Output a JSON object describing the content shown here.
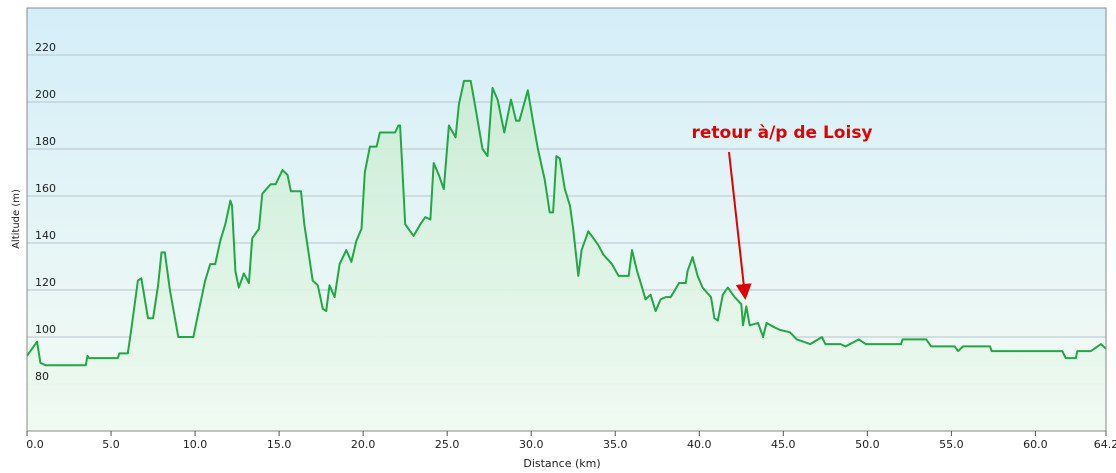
{
  "chart_data": {
    "type": "area",
    "x_label": "Distance  (km)",
    "y_label": "Altitude (m)",
    "annotation": "retour à/p de Loisy",
    "color": "#22a745",
    "grid": true,
    "xlim": [
      0,
      64.2
    ],
    "ylim": [
      60,
      240
    ],
    "xticks": [
      {
        "value": 0,
        "label": "0.0"
      },
      {
        "value": 5,
        "label": "5.0"
      },
      {
        "value": 10,
        "label": "10.0"
      },
      {
        "value": 15,
        "label": "15.0"
      },
      {
        "value": 20,
        "label": "20.0"
      },
      {
        "value": 25,
        "label": "25.0"
      },
      {
        "value": 30,
        "label": "30.0"
      },
      {
        "value": 35,
        "label": "35.0"
      },
      {
        "value": 40,
        "label": "40.0"
      },
      {
        "value": 45,
        "label": "45.0"
      },
      {
        "value": 50,
        "label": "50.0"
      },
      {
        "value": 55,
        "label": "55.0"
      },
      {
        "value": 60,
        "label": "60.0"
      },
      64.2
    ],
    "yticks": [
      80,
      100,
      120,
      140,
      160,
      180,
      200,
      220
    ],
    "x": [
      0,
      0.6,
      0.8,
      1.1,
      3.5,
      3.6,
      3.7,
      5.4,
      5.5,
      6.0,
      6.2,
      6.6,
      6.8,
      7.2,
      7.5,
      7.8,
      8.0,
      8.2,
      8.5,
      9.0,
      9.9,
      10.1,
      10.6,
      10.9,
      11.2,
      11.5,
      11.8,
      12.1,
      12.2,
      12.4,
      12.6,
      12.9,
      13.2,
      13.4,
      13.8,
      14.0,
      14.5,
      14.8,
      15.2,
      15.5,
      15.7,
      16.3,
      16.5,
      17.0,
      17.3,
      17.6,
      17.8,
      18.0,
      18.3,
      18.6,
      19.0,
      19.3,
      19.6,
      19.9,
      20.1,
      20.4,
      20.8,
      21.0,
      21.9,
      22.1,
      22.2,
      22.5,
      22.8,
      23.0,
      23.4,
      23.7,
      24.0,
      24.2,
      24.5,
      24.8,
      25.1,
      25.5,
      25.7,
      26.0,
      26.4,
      26.7,
      27.1,
      27.4,
      27.7,
      28.0,
      28.4,
      28.8,
      29.1,
      29.3,
      29.8,
      30.1,
      30.4,
      30.8,
      31.1,
      31.3,
      31.5,
      31.7,
      32.0,
      32.3,
      32.5,
      32.8,
      33.0,
      33.4,
      33.6,
      34.0,
      34.3,
      34.8,
      35.2,
      35.8,
      36.0,
      36.3,
      36.6,
      36.8,
      37.1,
      37.4,
      37.7,
      38.0,
      38.3,
      38.8,
      39.2,
      39.3,
      39.6,
      39.9,
      40.2,
      40.7,
      40.9,
      41.1,
      41.4,
      41.7,
      42.1,
      42.5,
      42.6,
      42.8,
      43.0,
      43.5,
      43.8,
      44.0,
      44.5,
      44.8,
      45.4,
      45.8,
      46.6,
      47.3,
      47.5,
      48.4,
      48.7,
      49.5,
      49.9,
      50.8,
      52.0,
      52.1,
      53.5,
      53.8,
      55.2,
      55.4,
      55.7,
      57.3,
      57.4,
      61.6,
      61.8,
      62.4,
      62.5,
      63.3,
      63.9,
      64.2
    ],
    "values": [
      92,
      98,
      89,
      88,
      88,
      92,
      91,
      91,
      93,
      93,
      103,
      124,
      125,
      108,
      108,
      122,
      136,
      136,
      120,
      100,
      100,
      107,
      124,
      131,
      131,
      141,
      148,
      158,
      156,
      128,
      121,
      127,
      123,
      142,
      146,
      161,
      165,
      165,
      171,
      169,
      162,
      162,
      148,
      124,
      122,
      112,
      111,
      122,
      117,
      131,
      137,
      132,
      141,
      146,
      170,
      181,
      181,
      187,
      187,
      190,
      190,
      148,
      145,
      143,
      148,
      151,
      150,
      174,
      169,
      163,
      190,
      185,
      199,
      209,
      209,
      197,
      180,
      177,
      206,
      201,
      187,
      201,
      192,
      192,
      205,
      192,
      180,
      167,
      153,
      153,
      177,
      176,
      163,
      156,
      146,
      126,
      137,
      145,
      143,
      139,
      135,
      131,
      126,
      126,
      137,
      128,
      121,
      116,
      118,
      111,
      116,
      117,
      117,
      123,
      123,
      128,
      134,
      126,
      121,
      117,
      108,
      107,
      118,
      121,
      117,
      114,
      105,
      113,
      105,
      106,
      100,
      106,
      104,
      103,
      102,
      99,
      97,
      100,
      97,
      97,
      96,
      99,
      97,
      97,
      97,
      99,
      99,
      96,
      96,
      94,
      96,
      96,
      94,
      94,
      91,
      91,
      94,
      94,
      97,
      95
    ]
  }
}
